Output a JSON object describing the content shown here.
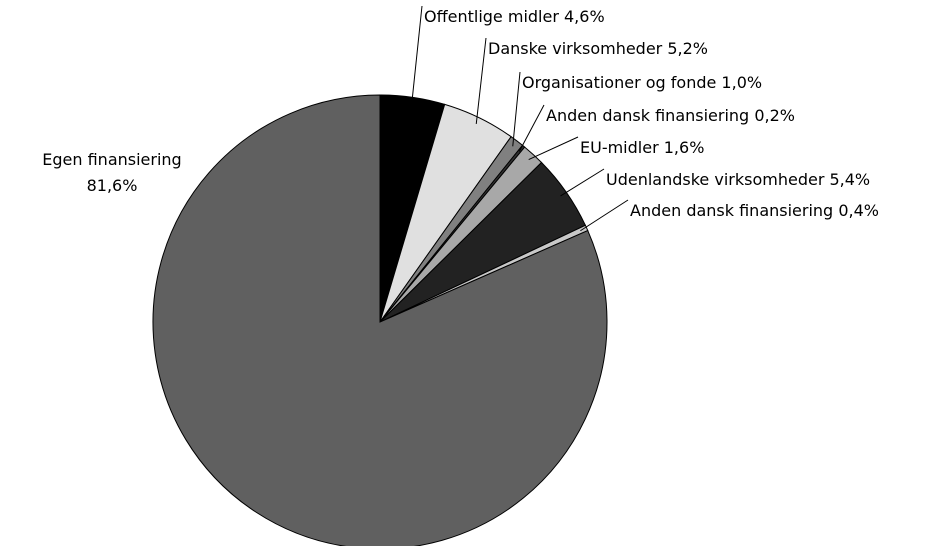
{
  "chart_data": {
    "type": "pie",
    "categories": [
      "Offentlige midler",
      "Danske virksomheder",
      "Organisationer og fonde",
      "Anden dansk finansiering",
      "EU-midler",
      "Udenlandske virksomheder",
      "Anden dansk finansiering",
      "Egen finansiering"
    ],
    "values": [
      4.6,
      5.2,
      1.0,
      0.2,
      1.6,
      5.4,
      0.4,
      81.6
    ],
    "value_labels": [
      "4,6%",
      "5,2%",
      "1,0%",
      "0,2%",
      "1,6%",
      "5,4%",
      "0,4%",
      "81,6%"
    ],
    "colors": [
      "#000000",
      "#e0e0e0",
      "#808080",
      "#303030",
      "#a8a8a8",
      "#222222",
      "#c8c8c8",
      "#606060"
    ]
  }
}
